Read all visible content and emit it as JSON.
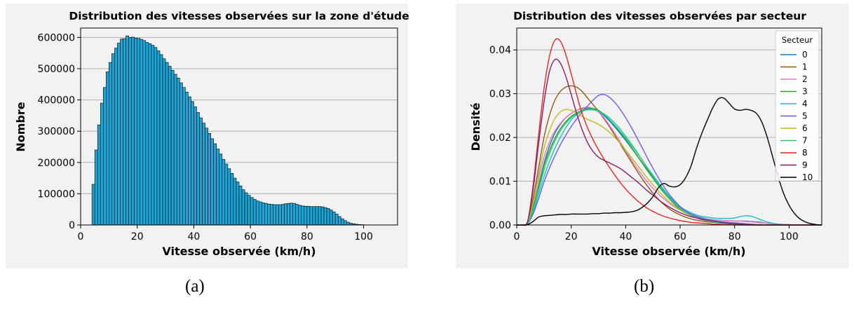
{
  "captions": {
    "a": "(a)",
    "b": "(b)"
  },
  "chart_data": [
    {
      "type": "bar",
      "title": "Distribution des vitesses observées sur la zone d'étude",
      "xlabel": "Vitesse observée (km/h)",
      "ylabel": "Nombre",
      "xlim": [
        0,
        112
      ],
      "ylim": [
        0,
        630000
      ],
      "xticks": [
        "0",
        "20",
        "40",
        "60",
        "80",
        "100"
      ],
      "yticks": [
        "0",
        "100000",
        "200000",
        "300000",
        "400000",
        "500000",
        "600000"
      ],
      "grid": "horizontal",
      "background": "#f2f2f2",
      "bar_color": "#1aa6d8",
      "bin_start": 4,
      "bin_width": 1,
      "values": [
        130000,
        240000,
        320000,
        390000,
        440000,
        490000,
        520000,
        548000,
        566000,
        582000,
        595000,
        596000,
        605000,
        600000,
        601000,
        598000,
        597000,
        594000,
        590000,
        584000,
        580000,
        575000,
        568000,
        557000,
        545000,
        532000,
        520000,
        508000,
        495000,
        482000,
        470000,
        455000,
        440000,
        425000,
        410000,
        395000,
        378000,
        360000,
        343000,
        326000,
        310000,
        293000,
        276000,
        260000,
        243000,
        227000,
        210000,
        195000,
        180000,
        165000,
        150000,
        138000,
        125000,
        113000,
        103000,
        95000,
        88000,
        82000,
        77000,
        74000,
        71000,
        69000,
        67000,
        66000,
        65000,
        65000,
        65000,
        66000,
        68000,
        69000,
        70000,
        69000,
        66000,
        63000,
        61000,
        60000,
        60000,
        59000,
        59000,
        59000,
        59000,
        58000,
        56000,
        53000,
        48000,
        42000,
        35000,
        27000,
        20000,
        14000,
        9000,
        6000,
        4000,
        2500,
        1500,
        1000,
        600,
        400,
        300,
        200,
        100,
        50,
        30,
        20,
        10
      ]
    },
    {
      "type": "line",
      "title": "Distribution des vitesses observées par secteur",
      "xlabel": "Vitesse observée (km/h)",
      "ylabel": "Densité",
      "xlim": [
        0,
        112
      ],
      "ylim": [
        0,
        0.045
      ],
      "xticks": [
        "0",
        "20",
        "40",
        "60",
        "80",
        "100"
      ],
      "yticks": [
        "0.00",
        "0.01",
        "0.02",
        "0.03",
        "0.04"
      ],
      "grid": "horizontal",
      "background": "#f2f2f2",
      "legend": {
        "title": "Secteur",
        "position": "top-right"
      },
      "x": [
        0,
        2,
        4,
        6,
        8,
        10,
        12,
        14,
        16,
        18,
        20,
        22,
        24,
        26,
        28,
        30,
        32,
        34,
        36,
        38,
        40,
        42,
        44,
        46,
        48,
        50,
        52,
        54,
        56,
        58,
        60,
        62,
        64,
        66,
        68,
        70,
        72,
        74,
        76,
        78,
        80,
        82,
        84,
        86,
        88,
        90,
        92,
        94,
        96,
        98,
        100,
        102,
        104,
        106,
        108,
        110,
        112
      ],
      "series": [
        {
          "name": "0",
          "color": "#1f77b4",
          "values": [
            0,
            0,
            0.0005,
            0.004,
            0.009,
            0.014,
            0.018,
            0.021,
            0.023,
            0.0245,
            0.0255,
            0.0262,
            0.0266,
            0.0268,
            0.0266,
            0.026,
            0.025,
            0.0238,
            0.0224,
            0.0209,
            0.0193,
            0.0177,
            0.016,
            0.0143,
            0.0126,
            0.011,
            0.0094,
            0.0079,
            0.0065,
            0.0052,
            0.0041,
            0.0032,
            0.0025,
            0.002,
            0.0017,
            0.0014,
            0.0012,
            0.0011,
            0.001,
            0.001,
            0.0009,
            0.0009,
            0.0009,
            0.0008,
            0.0007,
            0.0006,
            0.0004,
            0.0003,
            0.0002,
            0.0001,
            0.0001,
            0,
            0,
            0,
            0,
            0,
            0
          ]
        },
        {
          "name": "1",
          "color": "#8c5a14",
          "values": [
            0,
            0,
            0.0006,
            0.006,
            0.013,
            0.02,
            0.025,
            0.0285,
            0.0305,
            0.0315,
            0.0318,
            0.0315,
            0.0305,
            0.029,
            0.0275,
            0.026,
            0.0243,
            0.0225,
            0.0205,
            0.0185,
            0.0165,
            0.0145,
            0.0125,
            0.0106,
            0.0089,
            0.0073,
            0.0059,
            0.0047,
            0.0037,
            0.0029,
            0.0023,
            0.0018,
            0.0014,
            0.0011,
            0.0009,
            0.0007,
            0.0006,
            0.0005,
            0.0004,
            0.0003,
            0.0002,
            0.0002,
            0.0001,
            0.0001,
            0,
            0,
            0,
            0,
            0,
            0,
            0,
            0,
            0,
            0,
            0,
            0,
            0
          ]
        },
        {
          "name": "2",
          "color": "#e377c2",
          "values": [
            0,
            0,
            0.0005,
            0.005,
            0.0105,
            0.0155,
            0.019,
            0.0215,
            0.0232,
            0.0245,
            0.0255,
            0.0262,
            0.0267,
            0.0269,
            0.0266,
            0.0258,
            0.0245,
            0.0228,
            0.021,
            0.019,
            0.017,
            0.015,
            0.0131,
            0.0114,
            0.0098,
            0.0084,
            0.0071,
            0.006,
            0.005,
            0.0041,
            0.0034,
            0.0028,
            0.0023,
            0.0019,
            0.0016,
            0.0014,
            0.0012,
            0.0011,
            0.001,
            0.001,
            0.0009,
            0.0009,
            0.0008,
            0.0007,
            0.0006,
            0.0005,
            0.0004,
            0.0003,
            0.0002,
            0.0001,
            0.0001,
            0,
            0,
            0,
            0,
            0,
            0
          ]
        },
        {
          "name": "3",
          "color": "#2ca02c",
          "values": [
            0,
            0,
            0.0005,
            0.004,
            0.0085,
            0.0135,
            0.017,
            0.0198,
            0.022,
            0.0236,
            0.0248,
            0.0256,
            0.0262,
            0.0266,
            0.0266,
            0.0262,
            0.0253,
            0.0241,
            0.0227,
            0.0211,
            0.0195,
            0.0178,
            0.016,
            0.0142,
            0.0124,
            0.0107,
            0.009,
            0.0074,
            0.006,
            0.0047,
            0.0036,
            0.0028,
            0.0021,
            0.0016,
            0.0013,
            0.001,
            0.0008,
            0.0007,
            0.0006,
            0.0005,
            0.0004,
            0.0003,
            0.0002,
            0.0002,
            0.0001,
            0.0001,
            0,
            0,
            0,
            0,
            0,
            0,
            0,
            0,
            0,
            0,
            0
          ]
        },
        {
          "name": "4",
          "color": "#17becf",
          "values": [
            0,
            0,
            0.0004,
            0.003,
            0.007,
            0.011,
            0.0145,
            0.0175,
            0.02,
            0.0222,
            0.024,
            0.0252,
            0.026,
            0.0264,
            0.0264,
            0.026,
            0.0252,
            0.0241,
            0.0228,
            0.0214,
            0.0199,
            0.0183,
            0.0166,
            0.0149,
            0.0131,
            0.0114,
            0.0097,
            0.0081,
            0.0066,
            0.0053,
            0.0042,
            0.0034,
            0.0028,
            0.0023,
            0.002,
            0.0018,
            0.0016,
            0.0015,
            0.0015,
            0.0015,
            0.0016,
            0.0019,
            0.0021,
            0.002,
            0.0016,
            0.0011,
            0.0007,
            0.0004,
            0.0002,
            0.0001,
            0,
            0,
            0,
            0,
            0,
            0,
            0
          ]
        },
        {
          "name": "5",
          "color": "#6a5ee8",
          "values": [
            0,
            0,
            0.0003,
            0.0025,
            0.006,
            0.0098,
            0.013,
            0.0158,
            0.0183,
            0.0205,
            0.0225,
            0.0242,
            0.0258,
            0.0272,
            0.0285,
            0.0296,
            0.0298,
            0.0292,
            0.028,
            0.0264,
            0.0245,
            0.0224,
            0.0201,
            0.0177,
            0.0153,
            0.013,
            0.0108,
            0.0088,
            0.007,
            0.0055,
            0.0042,
            0.0032,
            0.0025,
            0.0019,
            0.0015,
            0.0012,
            0.001,
            0.0008,
            0.0007,
            0.0006,
            0.0005,
            0.0004,
            0.0003,
            0.0002,
            0.0001,
            0,
            0,
            0,
            0,
            0,
            0,
            0,
            0,
            0,
            0,
            0,
            0
          ]
        },
        {
          "name": "6",
          "color": "#bcbd22",
          "values": [
            0,
            0,
            0.0005,
            0.005,
            0.0115,
            0.0175,
            0.0215,
            0.0243,
            0.0258,
            0.0264,
            0.0262,
            0.0256,
            0.0248,
            0.0241,
            0.0236,
            0.023,
            0.0222,
            0.0212,
            0.02,
            0.0186,
            0.0171,
            0.0155,
            0.0139,
            0.0123,
            0.0107,
            0.0092,
            0.0078,
            0.0065,
            0.0053,
            0.0043,
            0.0034,
            0.0027,
            0.0021,
            0.0017,
            0.0013,
            0.001,
            0.0008,
            0.0006,
            0.0005,
            0.0004,
            0.0003,
            0.0002,
            0.0001,
            0.0001,
            0,
            0,
            0,
            0,
            0,
            0,
            0,
            0,
            0,
            0,
            0,
            0,
            0
          ]
        },
        {
          "name": "7",
          "color": "#2ecc71",
          "values": [
            0,
            0,
            0.0004,
            0.0035,
            0.008,
            0.0125,
            0.0162,
            0.0192,
            0.0215,
            0.0232,
            0.0245,
            0.0254,
            0.026,
            0.0263,
            0.0263,
            0.026,
            0.0254,
            0.0245,
            0.0233,
            0.0219,
            0.0203,
            0.0186,
            0.0168,
            0.0149,
            0.013,
            0.0111,
            0.0093,
            0.0077,
            0.0062,
            0.0049,
            0.0038,
            0.0029,
            0.0022,
            0.0016,
            0.0012,
            0.0009,
            0.0007,
            0.0005,
            0.0004,
            0.0003,
            0.0002,
            0.0001,
            0.0001,
            0,
            0,
            0,
            0,
            0,
            0,
            0,
            0,
            0,
            0,
            0,
            0,
            0,
            0
          ]
        },
        {
          "name": "8",
          "color": "#e8251c",
          "values": [
            0,
            0,
            0.0008,
            0.009,
            0.0205,
            0.031,
            0.0385,
            0.0422,
            0.042,
            0.039,
            0.0345,
            0.0298,
            0.0255,
            0.0222,
            0.0195,
            0.0172,
            0.0151,
            0.0132,
            0.0114,
            0.0097,
            0.0082,
            0.0069,
            0.0057,
            0.0047,
            0.0038,
            0.0031,
            0.0025,
            0.002,
            0.0016,
            0.0013,
            0.001,
            0.0008,
            0.0006,
            0.0005,
            0.0004,
            0.0003,
            0.0002,
            0.0002,
            0.0001,
            0.0001,
            0,
            0,
            0,
            0,
            0,
            0,
            0,
            0,
            0,
            0,
            0,
            0,
            0,
            0,
            0,
            0,
            0
          ]
        },
        {
          "name": "9",
          "color": "#8b1a6b",
          "values": [
            0,
            0,
            0.0008,
            0.008,
            0.0185,
            0.028,
            0.035,
            0.0378,
            0.037,
            0.034,
            0.0298,
            0.0255,
            0.0218,
            0.0188,
            0.0168,
            0.0155,
            0.0148,
            0.0142,
            0.0136,
            0.0129,
            0.012,
            0.011,
            0.01,
            0.0089,
            0.0078,
            0.0068,
            0.0058,
            0.0049,
            0.0041,
            0.0034,
            0.0028,
            0.0023,
            0.0019,
            0.0016,
            0.0013,
            0.0011,
            0.0009,
            0.0007,
            0.0005,
            0.0004,
            0.0003,
            0.0002,
            0.0001,
            0.0001,
            0,
            0,
            0,
            0,
            0,
            0,
            0,
            0,
            0,
            0,
            0,
            0,
            0
          ]
        },
        {
          "name": "10",
          "color": "#000000",
          "values": [
            0,
            0,
            0.0001,
            0.0008,
            0.0018,
            0.0021,
            0.0022,
            0.0023,
            0.0024,
            0.0024,
            0.0025,
            0.0025,
            0.0025,
            0.0025,
            0.0026,
            0.0026,
            0.0027,
            0.0027,
            0.0028,
            0.0028,
            0.0029,
            0.003,
            0.0033,
            0.004,
            0.005,
            0.0065,
            0.0085,
            0.0095,
            0.0089,
            0.0087,
            0.0092,
            0.0108,
            0.0135,
            0.0175,
            0.021,
            0.024,
            0.0268,
            0.0288,
            0.029,
            0.0278,
            0.0265,
            0.0262,
            0.0264,
            0.0262,
            0.0255,
            0.0235,
            0.02,
            0.0155,
            0.011,
            0.0072,
            0.0045,
            0.0026,
            0.0014,
            0.0007,
            0.0003,
            0.0001,
            0
          ]
        }
      ]
    }
  ]
}
